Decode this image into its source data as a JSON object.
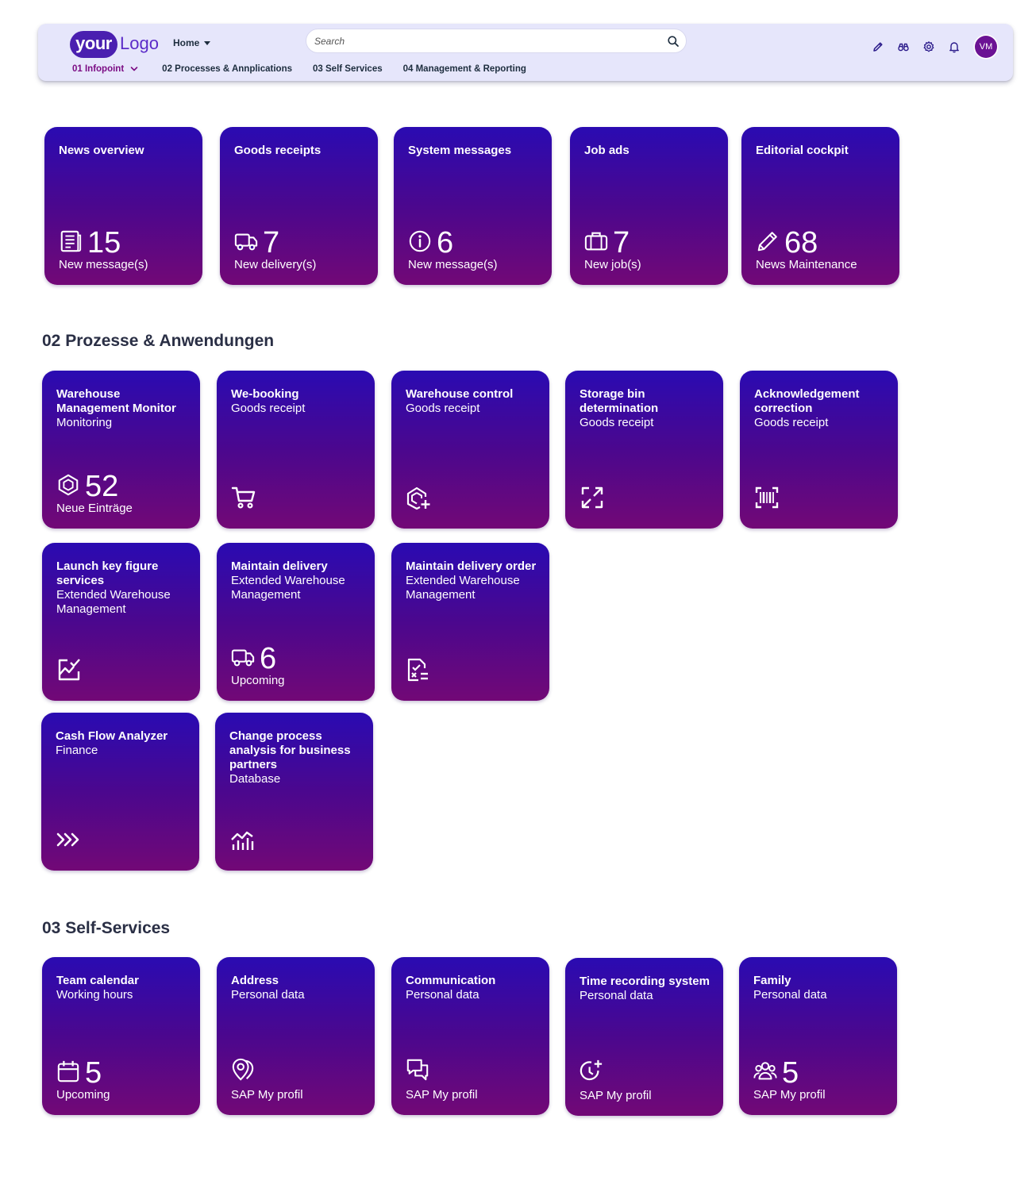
{
  "header": {
    "logo_your": "your",
    "logo_text": "Logo",
    "home_label": "Home",
    "search_placeholder": "Search",
    "nav": [
      "01 Infopoint",
      "02 Processes & Annplications",
      "03 Self Services",
      "04 Management & Reporting"
    ],
    "avatar_initials": "VM"
  },
  "infopoint_tiles": [
    {
      "title": "News overview",
      "number": "15",
      "info": "New message(s)",
      "icon": "news-icon"
    },
    {
      "title": "Goods receipts",
      "number": "7",
      "info": "New delivery(s)",
      "icon": "truck-icon"
    },
    {
      "title": "System messages",
      "number": "6",
      "info": "New message(s)",
      "icon": "info-icon"
    },
    {
      "title": "Job ads",
      "number": "7",
      "info": "New job(s)",
      "icon": "briefcase-icon"
    },
    {
      "title": "Editorial cockpit",
      "number": "68",
      "info": "News Maintenance",
      "icon": "pencil-icon"
    }
  ],
  "section_processes": {
    "title": "02 Prozesse & Anwendungen"
  },
  "process_tiles": [
    {
      "title": "Warehouse Management Monitor",
      "subtitle": "Monitoring",
      "number": "52",
      "info": "Neue Einträge",
      "icon": "cube-icon"
    },
    {
      "title": "We-booking",
      "subtitle": "Goods receipt",
      "icon": "cart-icon"
    },
    {
      "title": "Warehouse control",
      "subtitle": "Goods receipt",
      "icon": "add-cube-icon"
    },
    {
      "title": "Storage bin determination",
      "subtitle": "Goods receipt",
      "icon": "expand-icon"
    },
    {
      "title": "Acknowledgement correction",
      "subtitle": "Goods receipt",
      "icon": "barcode-icon"
    },
    {
      "title": "Launch key figure services",
      "subtitle": "Extended Warehouse Management",
      "icon": "trend-check-icon"
    },
    {
      "title": "Maintain delivery",
      "subtitle": "Extended Warehouse Management",
      "number": "6",
      "info": "Upcoming",
      "icon": "truck-icon"
    },
    {
      "title": "Maintain delivery order",
      "subtitle": "Extended Warehouse Management",
      "icon": "checklist-icon"
    },
    {
      "title": "Cash Flow Analyzer",
      "subtitle": "Finance",
      "icon": "chevrons-right-icon"
    },
    {
      "title": "Change process analysis for business partners",
      "subtitle": "Database",
      "icon": "line-chart-icon"
    }
  ],
  "section_self": {
    "title": "03 Self-Services"
  },
  "self_tiles": [
    {
      "title": "Team calendar",
      "subtitle": "Working hours",
      "number": "5",
      "info": "Upcoming",
      "icon": "calendar-icon"
    },
    {
      "title": "Address",
      "subtitle": "Personal data",
      "info": "SAP My profil",
      "icon": "location-icon"
    },
    {
      "title": "Communication",
      "subtitle": "Personal data",
      "info": "SAP My profil",
      "icon": "chat-icon"
    },
    {
      "title": "Time recording system",
      "subtitle": "Personal data",
      "info": "SAP My profil",
      "icon": "clock-add-icon"
    },
    {
      "title": "Family",
      "subtitle": "Personal data",
      "number": "5",
      "info": "SAP My profil",
      "icon": "group-icon"
    }
  ],
  "colors": {
    "tile_top": "#2a0bb2",
    "tile_bottom": "#720876",
    "shell_bg": "#e6e6fb",
    "active_nav": "#7b0d84"
  }
}
